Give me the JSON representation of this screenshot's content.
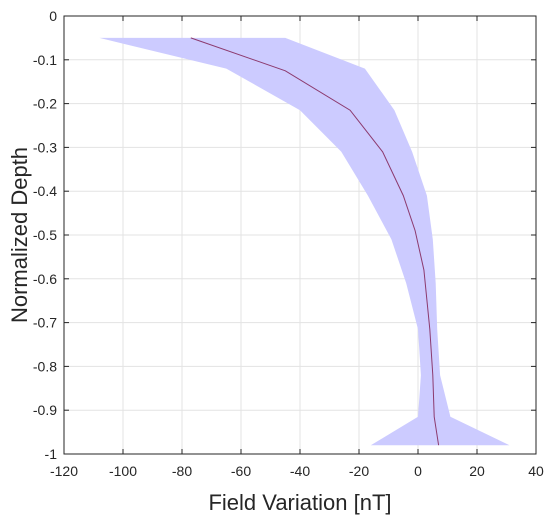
{
  "chart_data": {
    "type": "area",
    "title": "",
    "xlabel": "Field Variation [nT]",
    "ylabel": "Normalized Depth",
    "xlim": [
      -120,
      40
    ],
    "ylim": [
      -1,
      0
    ],
    "xticks": [
      "-120",
      "-100",
      "-80",
      "-60",
      "-40",
      "-20",
      "0",
      "20",
      "40"
    ],
    "xtick_values": [
      -120,
      -100,
      -80,
      -60,
      -40,
      -20,
      0,
      20,
      40
    ],
    "yticks": [
      "0",
      "-0.1",
      "-0.2",
      "-0.3",
      "-0.4",
      "-0.5",
      "-0.6",
      "-0.7",
      "-0.8",
      "-0.9",
      "-1"
    ],
    "ytick_values": [
      0,
      -0.1,
      -0.2,
      -0.3,
      -0.4,
      -0.5,
      -0.6,
      -0.7,
      -0.8,
      -0.9,
      -1
    ],
    "grid": true,
    "band": {
      "y": [
        -0.05,
        -0.12,
        -0.215,
        -0.31,
        -0.41,
        -0.51,
        -0.61,
        -0.715,
        -0.82,
        -0.915,
        -0.98
      ],
      "lower": [
        -108,
        -65,
        -40,
        -26,
        -17,
        -9,
        -4,
        0,
        1,
        0,
        -16
      ],
      "upper": [
        -45,
        -18,
        -8,
        -2,
        3,
        5,
        6,
        6.5,
        7.5,
        11,
        31
      ],
      "color": "#cccbff"
    },
    "mean": {
      "y": [
        -0.05,
        -0.125,
        -0.215,
        -0.31,
        -0.41,
        -0.49,
        -0.58,
        -0.715,
        -0.82,
        -0.915,
        -0.98
      ],
      "x": [
        -77,
        -45,
        -23,
        -12,
        -5,
        -1,
        2,
        4,
        5,
        5.5,
        7
      ],
      "color": "#8c3a6e"
    }
  }
}
